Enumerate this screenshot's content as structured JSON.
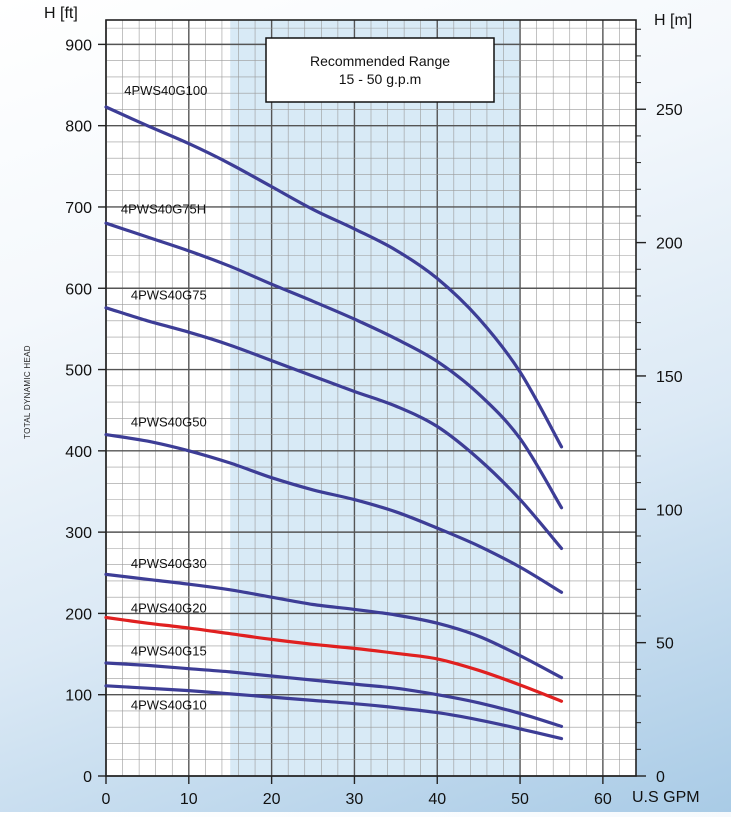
{
  "chart_data": {
    "type": "line",
    "left_axis_title": "H [ft]",
    "right_axis_title": "H [m]",
    "x_axis_title": "U.S GPM",
    "vertical_title": "TOTAL DYNAMIC HEAD",
    "xlim": [
      0,
      64
    ],
    "ylim": [
      0,
      930
    ],
    "x_ticks": [
      0,
      10,
      20,
      30,
      40,
      50,
      60
    ],
    "y_ticks_ft": [
      0,
      100,
      200,
      300,
      400,
      500,
      600,
      700,
      800,
      900
    ],
    "y_ticks_m": [
      0,
      50,
      100,
      150,
      200,
      250
    ],
    "grid": true,
    "recommended_range": {
      "title": "Recommended Range",
      "subtitle": "15 - 50 g.p.m",
      "x_from": 15,
      "x_to": 50,
      "color": "#d8eaf6"
    },
    "series": [
      {
        "name": "4PWS40G100",
        "color": "#3d3d96",
        "x": [
          0,
          5,
          10,
          15,
          20,
          25,
          30,
          35,
          40,
          45,
          50,
          55
        ],
        "y": [
          823,
          800,
          778,
          753,
          725,
          697,
          673,
          647,
          612,
          563,
          497,
          405
        ]
      },
      {
        "name": "4PWS40G75H",
        "color": "#3d3d96",
        "x": [
          0,
          5,
          10,
          15,
          20,
          25,
          30,
          35,
          40,
          45,
          50,
          55
        ],
        "y": [
          680,
          663,
          646,
          627,
          605,
          584,
          562,
          538,
          510,
          470,
          415,
          330
        ]
      },
      {
        "name": "4PWS40G75",
        "color": "#3d3d96",
        "x": [
          0,
          5,
          10,
          15,
          20,
          25,
          30,
          35,
          40,
          45,
          50,
          55
        ],
        "y": [
          576,
          560,
          546,
          530,
          511,
          492,
          473,
          455,
          430,
          390,
          340,
          280
        ]
      },
      {
        "name": "4PWS40G50",
        "color": "#3d3d96",
        "x": [
          0,
          5,
          10,
          15,
          20,
          25,
          30,
          35,
          40,
          45,
          50,
          55
        ],
        "y": [
          420,
          412,
          400,
          385,
          367,
          352,
          340,
          325,
          305,
          283,
          257,
          226
        ]
      },
      {
        "name": "4PWS40G30",
        "color": "#3d3d96",
        "x": [
          0,
          5,
          10,
          15,
          20,
          25,
          30,
          35,
          40,
          45,
          50,
          55
        ],
        "y": [
          248,
          242,
          236,
          229,
          220,
          211,
          205,
          198,
          188,
          172,
          148,
          121
        ]
      },
      {
        "name": "4PWS40G20",
        "color": "#e02020",
        "x": [
          0,
          5,
          10,
          15,
          20,
          25,
          30,
          35,
          40,
          45,
          50,
          55
        ],
        "y": [
          195,
          188,
          182,
          175,
          168,
          162,
          157,
          151,
          144,
          130,
          112,
          92
        ]
      },
      {
        "name": "4PWS40G15",
        "color": "#3d3d96",
        "x": [
          0,
          5,
          10,
          15,
          20,
          25,
          30,
          35,
          40,
          45,
          50,
          55
        ],
        "y": [
          139,
          136,
          132,
          128,
          123,
          118,
          113,
          108,
          100,
          90,
          77,
          61
        ]
      },
      {
        "name": "4PWS40G10",
        "color": "#3d3d96",
        "x": [
          0,
          5,
          10,
          15,
          20,
          25,
          30,
          35,
          40,
          45,
          50,
          55
        ],
        "y": [
          111,
          108,
          105,
          101,
          97,
          93,
          89,
          84,
          78,
          69,
          58,
          46
        ]
      }
    ],
    "label_positions": [
      {
        "name": "4PWS40G100",
        "x": 2.2,
        "y": 838
      },
      {
        "name": "4PWS40G75H",
        "x": 1.8,
        "y": 692
      },
      {
        "name": "4PWS40G75",
        "x": 3.0,
        "y": 586
      },
      {
        "name": "4PWS40G50",
        "x": 3.0,
        "y": 430
      },
      {
        "name": "4PWS40G30",
        "x": 3.0,
        "y": 256
      },
      {
        "name": "4PWS40G20",
        "x": 3.0,
        "y": 201
      },
      {
        "name": "4PWS40G15",
        "x": 3.0,
        "y": 148
      },
      {
        "name": "4PWS40G10",
        "x": 3.0,
        "y": 82
      }
    ]
  }
}
